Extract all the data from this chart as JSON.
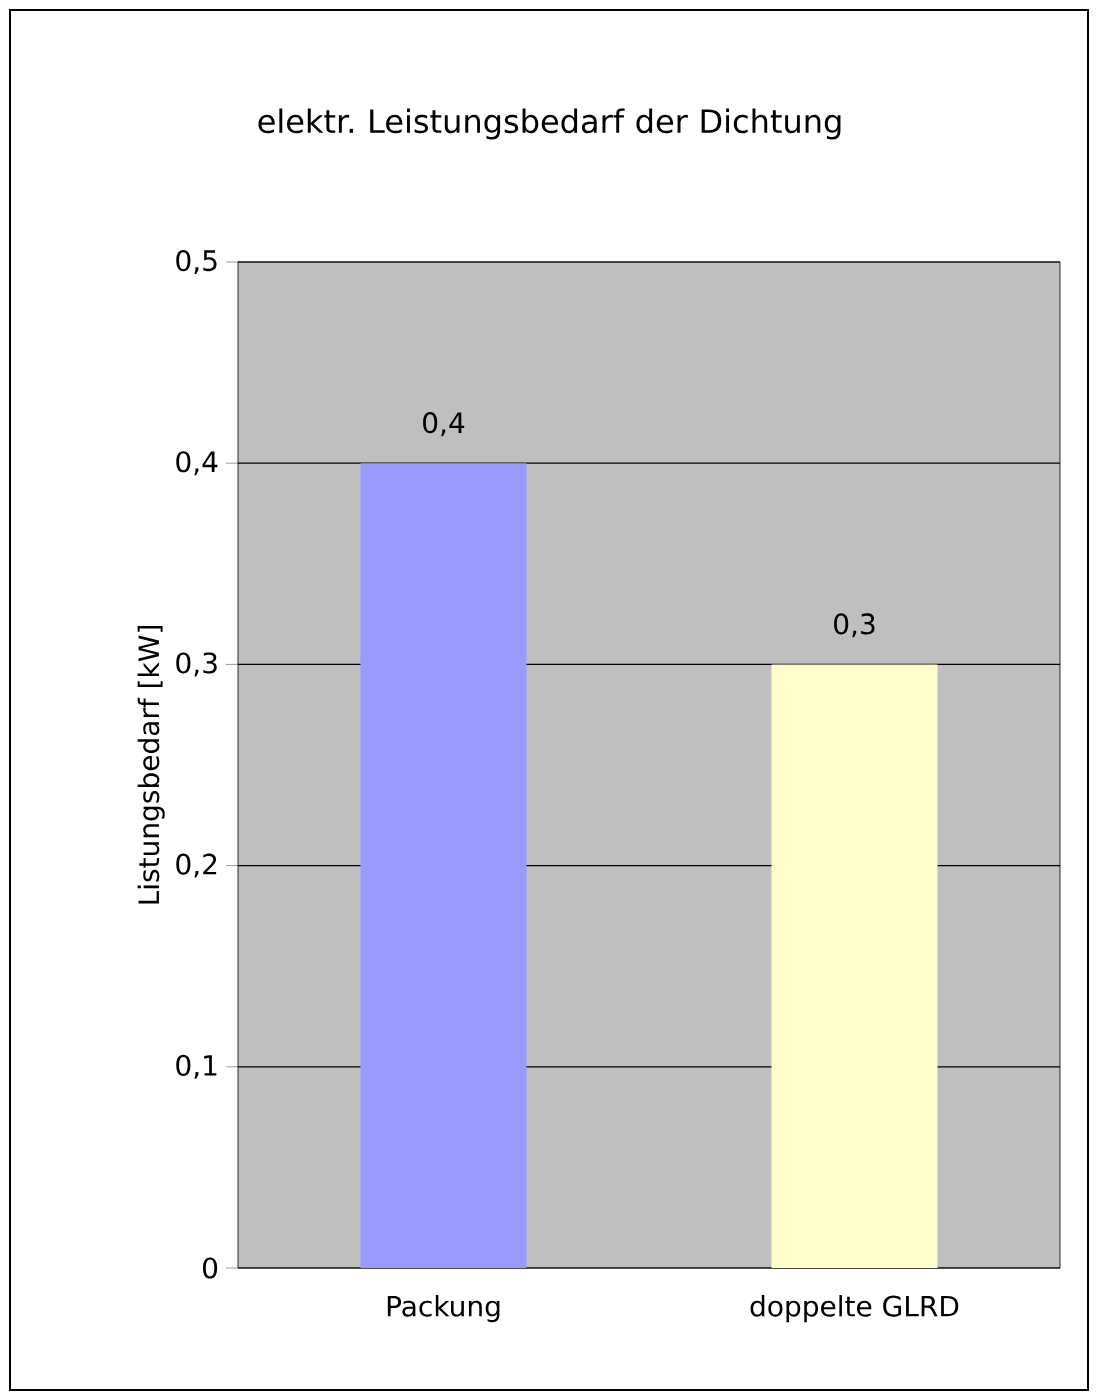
{
  "chart_data": {
    "type": "bar",
    "title": "elektr. Leistungsbedarf der Dichtung",
    "ylabel": "Listungsbedarf [kW]",
    "categories": [
      "Packung",
      "doppelte GLRD"
    ],
    "values": [
      0.4,
      0.3
    ],
    "colors": [
      "#9999ff",
      "#ffffcc"
    ],
    "value_labels": [
      "0,4",
      "0,3"
    ],
    "ylim": [
      0,
      0.5
    ],
    "yticks": [
      0,
      {
        "value": 0.1,
        "label": "0,1"
      },
      {
        "value": 0.2,
        "label": "0,2"
      },
      {
        "value": 0.3,
        "label": "0,3"
      },
      {
        "value": 0.4,
        "label": "0,4"
      },
      {
        "value": 0.5,
        "label": "0,5"
      }
    ],
    "grid": "y"
  }
}
